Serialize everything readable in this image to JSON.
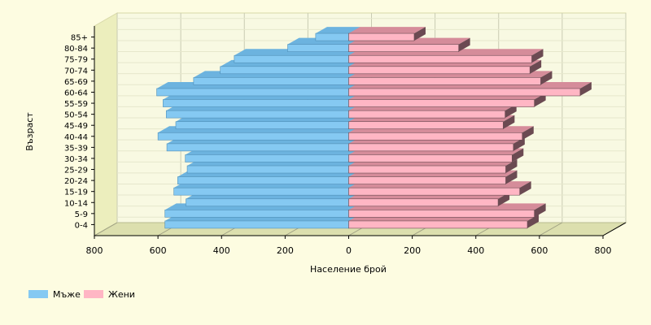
{
  "chart_data": {
    "type": "bar",
    "orientation": "horizontal",
    "style": "population-pyramid-3d",
    "categories": [
      "0-4",
      "5-9",
      "10-14",
      "15-19",
      "20-24",
      "25-29",
      "30-34",
      "35-39",
      "40-44",
      "45-49",
      "50-54",
      "55-59",
      "60-64",
      "65-69",
      "70-74",
      "75-79",
      "80-84",
      "85+"
    ],
    "series": [
      {
        "name": "Мъже",
        "side": "left",
        "color": "#85c9f2",
        "values": [
          578,
          578,
          512,
          550,
          538,
          508,
          514,
          572,
          600,
          544,
          574,
          584,
          604,
          488,
          404,
          360,
          192,
          104
        ]
      },
      {
        "name": "Жени",
        "side": "right",
        "color": "#ffb6c4",
        "values": [
          562,
          584,
          470,
          538,
          494,
          494,
          514,
          518,
          546,
          486,
          492,
          584,
          728,
          604,
          570,
          576,
          346,
          206
        ]
      }
    ],
    "xlabel": "Население брой",
    "ylabel": "Възраст",
    "xlim": [
      -800,
      800
    ],
    "xticks": [
      -800,
      -600,
      -400,
      -200,
      0,
      200,
      400,
      600,
      800
    ],
    "xtick_labels": [
      "800",
      "600",
      "400",
      "200",
      "0",
      "200",
      "400",
      "600",
      "800"
    ],
    "grid": true,
    "legend": "bottom-left",
    "colors": {
      "background": "#fdfce1",
      "plot_back": "#f8f9e2",
      "plot_left_wall": "#eceebd",
      "plot_floor": "#dcdfae",
      "grid": "#c9cbb2",
      "axis": "#000000",
      "male_top": "#6cb3df",
      "male_side": "#4f8fb8",
      "female_top": "#d58c9a",
      "female_side": "#6b4a52"
    }
  }
}
